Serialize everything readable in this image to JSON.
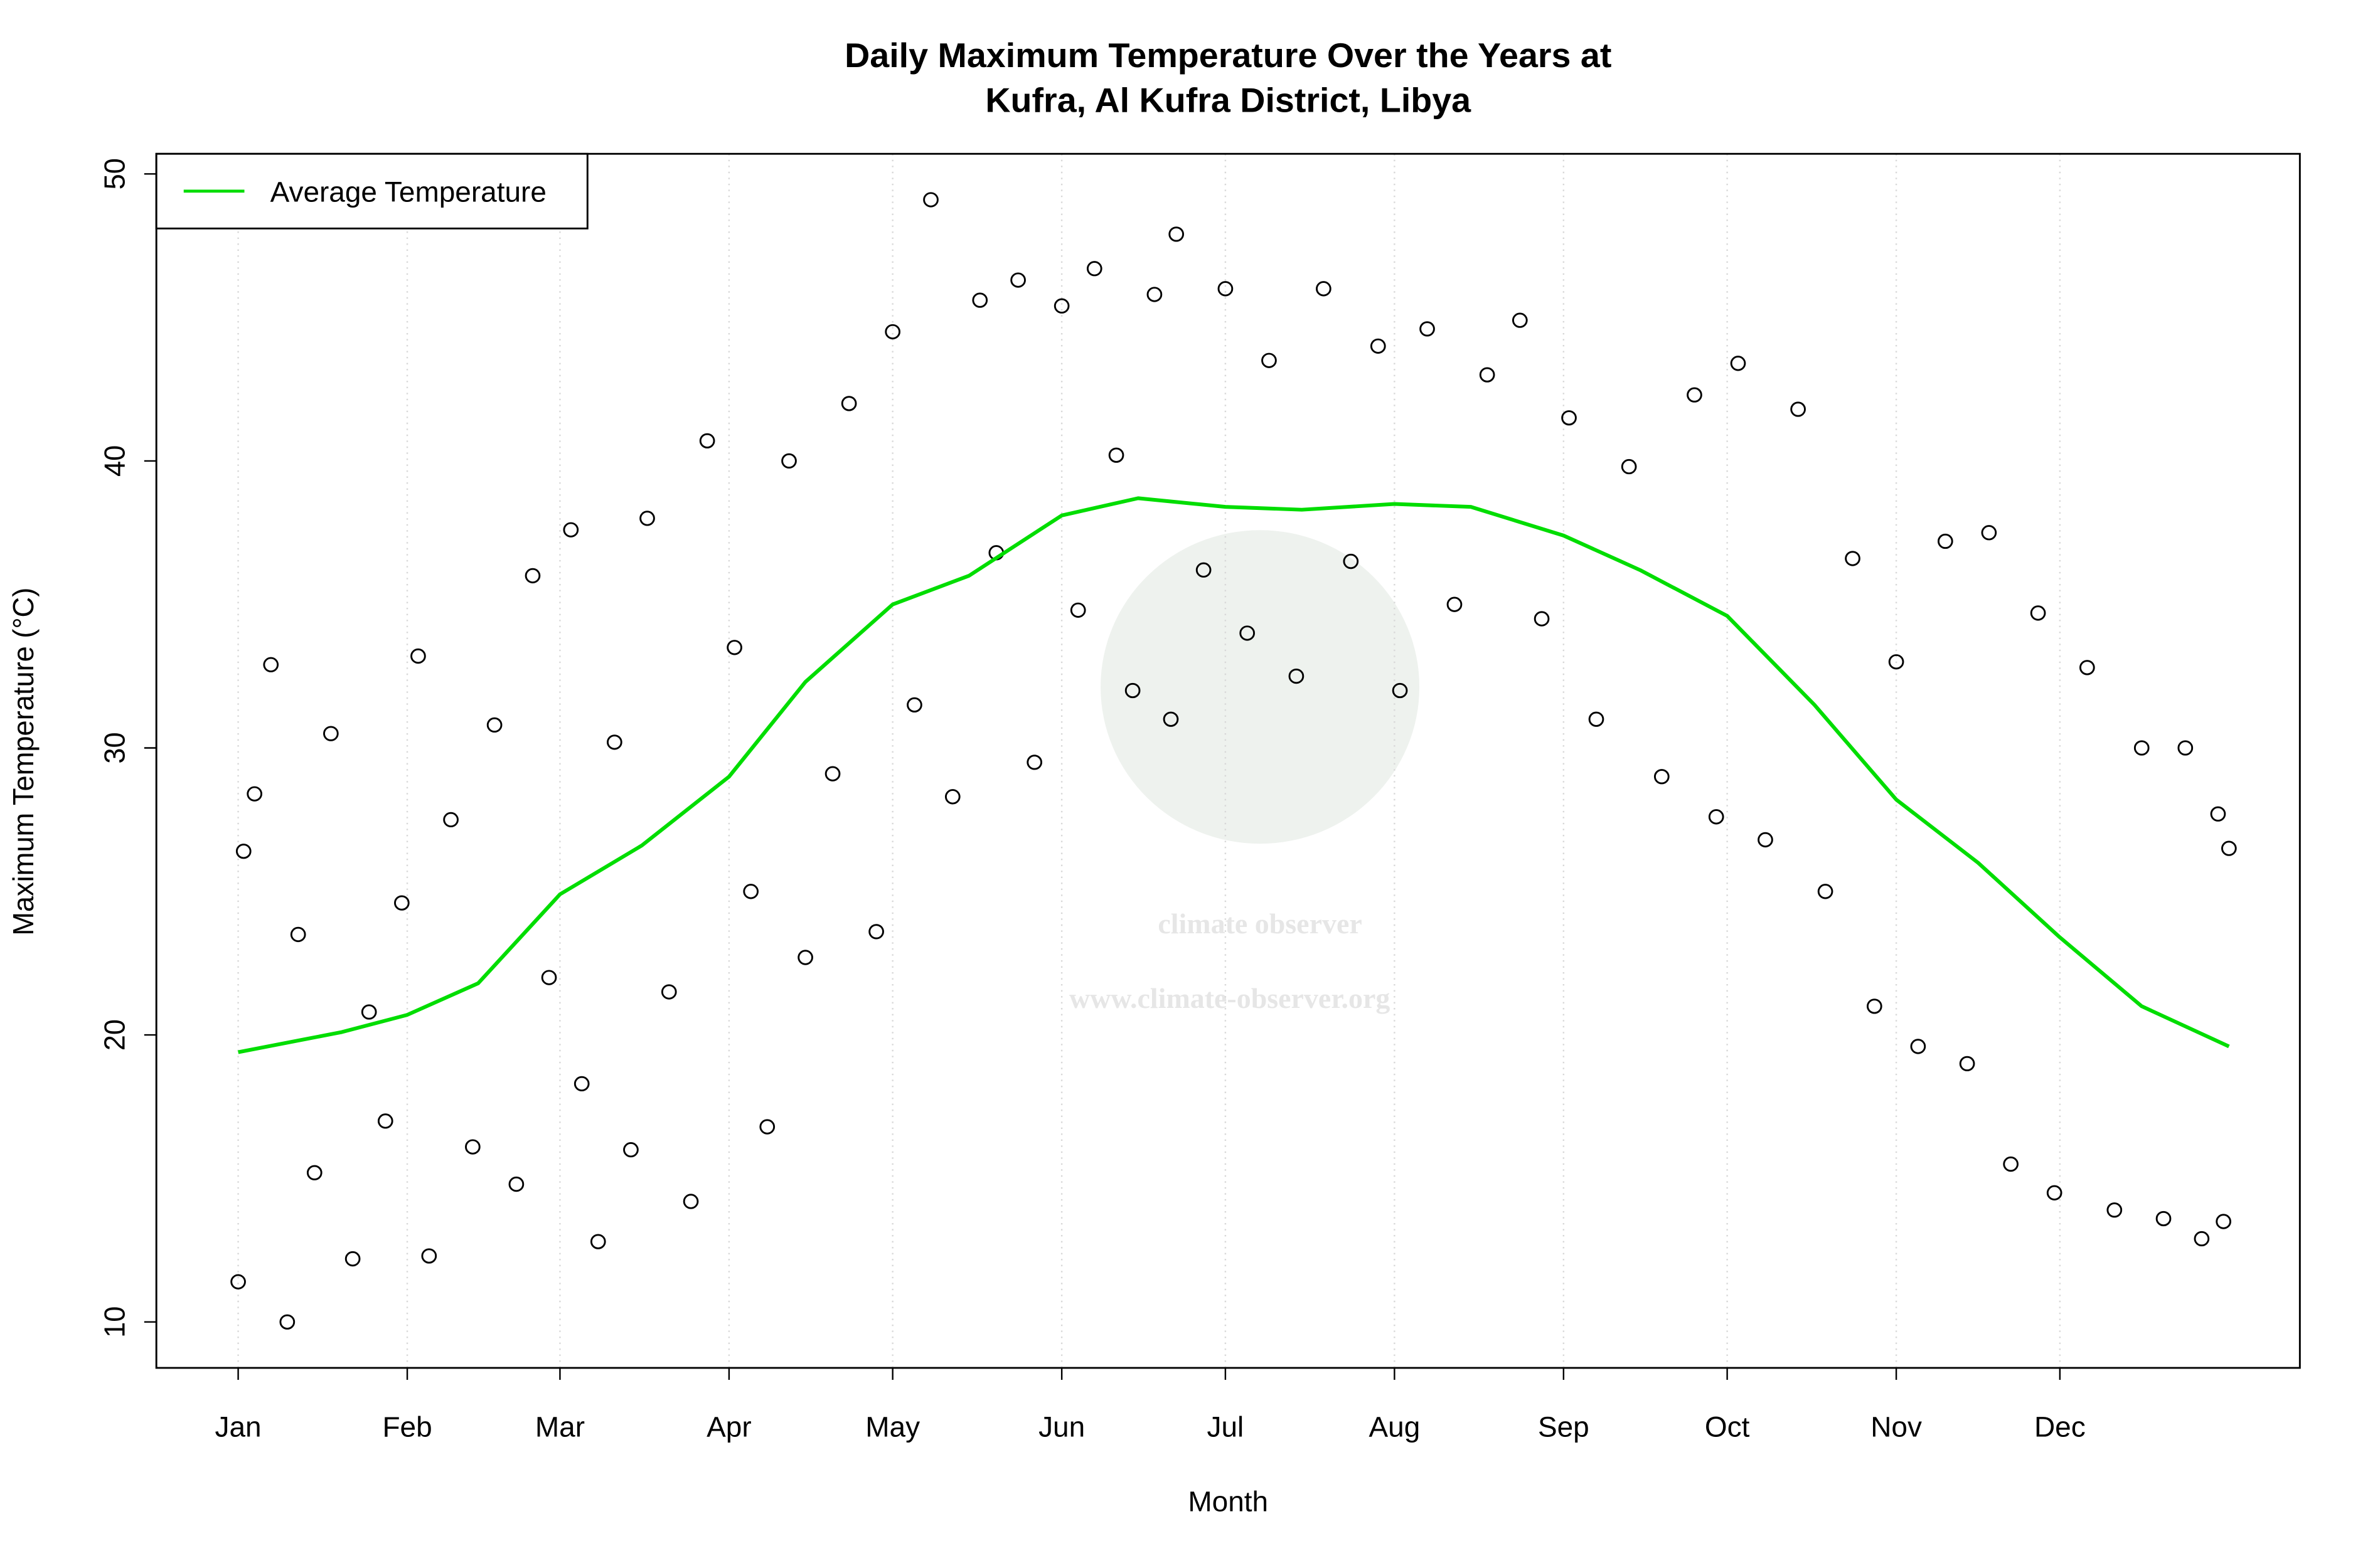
{
  "chart_data": {
    "type": "scatter",
    "title": [
      "Daily Maximum Temperature Over the Years at",
      "Kufra, Al Kufra District, Libya"
    ],
    "x_label": "Month",
    "y_label": "Maximum Temperature (°C)",
    "watermark": "climate observer",
    "watermark_url": "www.climate-observer.org",
    "xlim": [
      -14,
      379
    ],
    "ylim": [
      8.4,
      50.7
    ],
    "xticks": [
      {
        "value": 1,
        "label": "Jan"
      },
      {
        "value": 32,
        "label": "Feb"
      },
      {
        "value": 60,
        "label": "Mar"
      },
      {
        "value": 91,
        "label": "Apr"
      },
      {
        "value": 121,
        "label": "May"
      },
      {
        "value": 152,
        "label": "Jun"
      },
      {
        "value": 182,
        "label": "Jul"
      },
      {
        "value": 213,
        "label": "Aug"
      },
      {
        "value": 244,
        "label": "Sep"
      },
      {
        "value": 274,
        "label": "Oct"
      },
      {
        "value": 305,
        "label": "Nov"
      },
      {
        "value": 335,
        "label": "Dec"
      }
    ],
    "yticks": [
      10,
      20,
      30,
      40,
      50
    ],
    "grid": true,
    "legend": "top-left",
    "points": {
      "color": "#000000",
      "x": [
        1,
        2,
        4,
        7,
        10,
        12,
        15,
        18,
        22,
        25,
        28,
        31,
        34,
        36,
        40,
        44,
        48,
        52,
        55,
        58,
        62,
        64,
        67,
        70,
        73,
        76,
        80,
        84,
        87,
        92,
        95,
        98,
        102,
        105,
        110,
        113,
        118,
        121,
        125,
        128,
        132,
        137,
        140,
        144,
        147,
        152,
        155,
        158,
        162,
        165,
        169,
        172,
        173,
        178,
        182,
        186,
        190,
        195,
        200,
        205,
        210,
        214,
        219,
        224,
        230,
        236,
        240,
        245,
        250,
        256,
        262,
        268,
        272,
        276,
        281,
        287,
        292,
        297,
        301,
        305,
        309,
        314,
        318,
        322,
        326,
        331,
        334,
        340,
        345,
        350,
        354,
        358,
        361,
        364,
        365,
        366
      ],
      "y": [
        11.4,
        26.4,
        28.4,
        32.9,
        10.0,
        23.5,
        15.2,
        30.5,
        12.2,
        20.8,
        17.0,
        24.6,
        33.2,
        12.3,
        27.5,
        16.1,
        30.8,
        14.8,
        36.0,
        22.0,
        37.6,
        18.3,
        12.8,
        30.2,
        16.0,
        38.0,
        21.5,
        14.2,
        40.7,
        33.5,
        25.0,
        16.8,
        40.0,
        22.7,
        29.1,
        42.0,
        23.6,
        44.5,
        31.5,
        49.1,
        28.3,
        45.6,
        36.8,
        46.3,
        29.5,
        45.4,
        34.8,
        46.7,
        40.2,
        32.0,
        45.8,
        31.0,
        47.9,
        36.2,
        46.0,
        34.0,
        43.5,
        32.5,
        46.0,
        36.5,
        44.0,
        32.0,
        44.6,
        35.0,
        43.0,
        44.9,
        34.5,
        41.5,
        31.0,
        39.8,
        29.0,
        42.3,
        27.6,
        43.4,
        26.8,
        41.8,
        25.0,
        36.6,
        21.0,
        33.0,
        19.6,
        37.2,
        19.0,
        37.5,
        15.5,
        34.7,
        14.5,
        32.8,
        13.9,
        30.0,
        13.6,
        30.0,
        12.9,
        27.7,
        13.5,
        26.5
      ]
    },
    "series": [
      {
        "name": "Average Temperature",
        "color": "#00dd00",
        "x": [
          1,
          20,
          32,
          45,
          60,
          75,
          91,
          105,
          121,
          135,
          152,
          166,
          182,
          196,
          213,
          227,
          244,
          258,
          274,
          290,
          305,
          320,
          335,
          350,
          366
        ],
        "values": [
          19.4,
          20.1,
          20.7,
          21.8,
          24.9,
          26.6,
          29.0,
          32.3,
          35.0,
          36.0,
          38.1,
          38.7,
          38.4,
          38.3,
          38.5,
          38.4,
          37.4,
          36.2,
          34.6,
          31.5,
          28.2,
          26.0,
          23.4,
          21.0,
          19.6
        ]
      }
    ]
  }
}
